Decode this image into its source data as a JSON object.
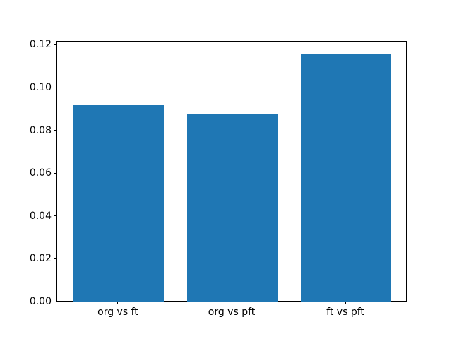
{
  "chart_data": {
    "type": "bar",
    "title": "",
    "xlabel": "",
    "ylabel": "",
    "categories": [
      "org vs ft",
      "org vs pft",
      "ft vs pft"
    ],
    "values": [
      0.092,
      0.088,
      0.116
    ],
    "bar_centers": [
      0,
      1,
      2
    ],
    "bar_width": 0.8,
    "bar_color": "#1f77b4",
    "xlim": [
      -0.54,
      2.54
    ],
    "ylim": [
      0,
      0.1218
    ],
    "yticks": [
      0,
      0.02,
      0.04,
      0.06,
      0.08,
      0.1,
      0.12
    ],
    "ytick_labels": [
      "0.00",
      "0.02",
      "0.04",
      "0.06",
      "0.08",
      "0.10",
      "0.12"
    ],
    "grid": false,
    "legend": null,
    "spine_color": "#000000",
    "background_color": "#ffffff"
  }
}
